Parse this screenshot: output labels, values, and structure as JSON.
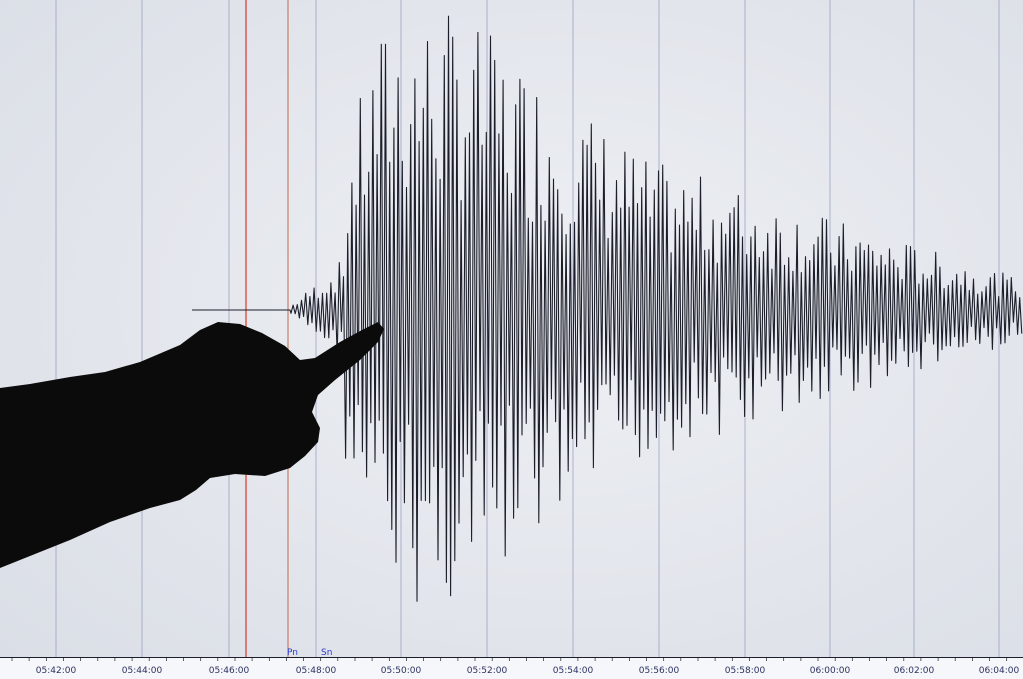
{
  "time_axis": {
    "labels": [
      "05:42:00",
      "05:44:00",
      "05:46:00",
      "05:48:00",
      "05:50:00",
      "05:52:00",
      "05:54:00",
      "05:56:00",
      "05:58:00",
      "06:00:00",
      "06:02:00",
      "06:04:00"
    ]
  },
  "phase_markers": [
    {
      "label": "Pn"
    },
    {
      "label": "Sn"
    }
  ],
  "colors": {
    "background": "#e7eaef",
    "grid": "#9aa3c4",
    "trace": "#1c1f2a",
    "marker_red": "#d43a2a",
    "marker_blue": "#3146c8",
    "silhouette": "#0b0b0b"
  }
}
